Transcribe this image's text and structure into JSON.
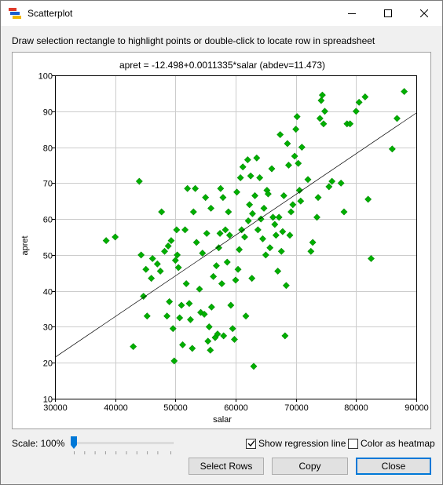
{
  "window": {
    "title": "Scatterplot",
    "minimize_icon": "minimize-icon",
    "maximize_icon": "maximize-icon",
    "close_icon": "close-icon"
  },
  "instructions": "Draw selection rectangle to highlight points or double-click to locate row in spreadsheet",
  "controls": {
    "scale_label": "Scale: 100%",
    "scale_value_percent": 100,
    "show_regression_label": "Show regression line",
    "show_regression_checked": true,
    "heatmap_label": "Color as heatmap",
    "heatmap_checked": false,
    "select_rows_label": "Select Rows",
    "copy_label": "Copy",
    "close_label": "Close"
  },
  "chart_data": {
    "type": "scatter",
    "title": "apret = -12.498+0.0011335*salar (abdev=11.473)",
    "xlabel": "salar",
    "ylabel": "apret",
    "xlim": [
      30000,
      90000
    ],
    "ylim": [
      10,
      100
    ],
    "xticks": [
      "30000",
      "40000",
      "50000",
      "60000",
      "70000",
      "80000",
      "90000"
    ],
    "yticks": [
      "10",
      "20",
      "30",
      "40",
      "50",
      "60",
      "70",
      "80",
      "90",
      "100"
    ],
    "grid": true,
    "marker": "diamond",
    "marker_color": "#00b000",
    "regression": {
      "intercept": -12.498,
      "slope": 0.0011335,
      "color": "#000000"
    },
    "points": [
      [
        38500,
        54
      ],
      [
        40000,
        55
      ],
      [
        43000,
        24.5
      ],
      [
        44000,
        70.5
      ],
      [
        44300,
        50
      ],
      [
        44700,
        38.5
      ],
      [
        45300,
        33
      ],
      [
        45100,
        46
      ],
      [
        46000,
        43.5
      ],
      [
        46200,
        49
      ],
      [
        47000,
        47.5
      ],
      [
        47500,
        45.5
      ],
      [
        47700,
        62
      ],
      [
        48200,
        51
      ],
      [
        48800,
        52.5
      ],
      [
        48600,
        33
      ],
      [
        49000,
        37
      ],
      [
        49300,
        54
      ],
      [
        49600,
        29.5
      ],
      [
        49800,
        20.5
      ],
      [
        50000,
        48.5
      ],
      [
        50200,
        57
      ],
      [
        50300,
        50
      ],
      [
        50500,
        46.5
      ],
      [
        50700,
        32.5
      ],
      [
        51000,
        36
      ],
      [
        51200,
        25
      ],
      [
        51600,
        57
      ],
      [
        51800,
        42
      ],
      [
        52000,
        68.5
      ],
      [
        52300,
        36.5
      ],
      [
        52500,
        32
      ],
      [
        52800,
        24
      ],
      [
        53000,
        62
      ],
      [
        53300,
        68.5
      ],
      [
        53500,
        53.5
      ],
      [
        54000,
        40.5
      ],
      [
        54200,
        34
      ],
      [
        54500,
        50.5
      ],
      [
        54800,
        33.5
      ],
      [
        55000,
        66
      ],
      [
        55200,
        56
      ],
      [
        55400,
        26
      ],
      [
        55600,
        30
      ],
      [
        55800,
        23.5
      ],
      [
        55900,
        63
      ],
      [
        56000,
        35.5
      ],
      [
        56300,
        44
      ],
      [
        56600,
        27
      ],
      [
        56800,
        47
      ],
      [
        57000,
        28
      ],
      [
        57200,
        52
      ],
      [
        57400,
        56
      ],
      [
        57500,
        68.5
      ],
      [
        57700,
        42
      ],
      [
        57900,
        66
      ],
      [
        58000,
        27.5
      ],
      [
        58300,
        57
      ],
      [
        58600,
        48
      ],
      [
        58800,
        62
      ],
      [
        59000,
        55.5
      ],
      [
        59200,
        36
      ],
      [
        59500,
        29.5
      ],
      [
        59800,
        26.5
      ],
      [
        60000,
        43
      ],
      [
        60200,
        67.5
      ],
      [
        60400,
        46
      ],
      [
        60600,
        51.5
      ],
      [
        60800,
        71.5
      ],
      [
        61000,
        57
      ],
      [
        61200,
        74.5
      ],
      [
        61500,
        55
      ],
      [
        61700,
        33
      ],
      [
        62000,
        76.5
      ],
      [
        62100,
        59.5
      ],
      [
        62300,
        64
      ],
      [
        62500,
        72
      ],
      [
        62700,
        43.5
      ],
      [
        62800,
        61.5
      ],
      [
        63000,
        19
      ],
      [
        63200,
        66.5
      ],
      [
        63500,
        77
      ],
      [
        63700,
        57
      ],
      [
        64000,
        71.5
      ],
      [
        64200,
        60
      ],
      [
        64500,
        54.5
      ],
      [
        64700,
        63
      ],
      [
        65000,
        50
      ],
      [
        65200,
        68
      ],
      [
        65400,
        67
      ],
      [
        65700,
        52
      ],
      [
        66000,
        74
      ],
      [
        66200,
        60.5
      ],
      [
        66500,
        58.5
      ],
      [
        66700,
        55.5
      ],
      [
        67000,
        45.5
      ],
      [
        67200,
        60.5
      ],
      [
        67400,
        83.5
      ],
      [
        67600,
        51
      ],
      [
        67800,
        56.5
      ],
      [
        68000,
        66.5
      ],
      [
        68200,
        27.5
      ],
      [
        68400,
        41.5
      ],
      [
        68600,
        81
      ],
      [
        68800,
        75
      ],
      [
        69000,
        55.5
      ],
      [
        69200,
        62
      ],
      [
        69500,
        64
      ],
      [
        69800,
        77.5
      ],
      [
        70000,
        85
      ],
      [
        70200,
        88.5
      ],
      [
        70400,
        75.5
      ],
      [
        70600,
        68
      ],
      [
        70800,
        65
      ],
      [
        71000,
        80
      ],
      [
        72000,
        71
      ],
      [
        72500,
        51
      ],
      [
        72800,
        53.5
      ],
      [
        73500,
        60.5
      ],
      [
        73700,
        66
      ],
      [
        74000,
        88
      ],
      [
        74200,
        93
      ],
      [
        74400,
        94.5
      ],
      [
        74600,
        86.5
      ],
      [
        74800,
        90
      ],
      [
        75500,
        69
      ],
      [
        76000,
        70.5
      ],
      [
        77500,
        70
      ],
      [
        78000,
        62
      ],
      [
        78500,
        86.5
      ],
      [
        79000,
        86.5
      ],
      [
        80000,
        90
      ],
      [
        80500,
        92.5
      ],
      [
        81500,
        94
      ],
      [
        82000,
        65.5
      ],
      [
        82500,
        49
      ],
      [
        86000,
        79.5
      ],
      [
        86800,
        88
      ],
      [
        88000,
        95.5
      ]
    ]
  }
}
